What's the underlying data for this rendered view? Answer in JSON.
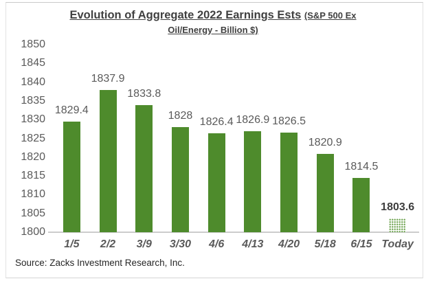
{
  "title": {
    "main": "Evolution of Aggregate 2022 Earnings Ests",
    "paren": "(S&P 500 Ex",
    "line2": "Oil/Energy - Billion $)"
  },
  "source_note": "Source: Zacks Investment Research, Inc.",
  "chart_data": {
    "type": "bar",
    "title": "Evolution of Aggregate 2022 Earnings Ests (S&P 500 Ex Oil/Energy - Billion $)",
    "categories": [
      "1/5",
      "2/2",
      "3/9",
      "3/30",
      "4/6",
      "4/13",
      "4/20",
      "5/18",
      "6/15",
      "Today"
    ],
    "values": [
      1829.4,
      1837.9,
      1833.8,
      1828,
      1826.4,
      1826.9,
      1826.5,
      1820.9,
      1814.5,
      1803.6
    ],
    "data_labels": [
      "1829.4",
      "1837.9",
      "1833.8",
      "1828",
      "1826.4",
      "1826.9",
      "1826.5",
      "1820.9",
      "1814.5",
      "1803.6"
    ],
    "xlabel": "",
    "ylabel": "",
    "ylim": [
      1800,
      1850
    ],
    "yticks": [
      1850,
      1845,
      1840,
      1835,
      1830,
      1825,
      1820,
      1815,
      1810,
      1805,
      1800
    ],
    "grid": false,
    "legend": false,
    "bar_color": "#4e8b2c",
    "last_bar_style": "dotted-pattern",
    "last_bar_dot_color": "#79aa5d",
    "data_label_color": "#595959",
    "final_label_color": "#3d3d3d",
    "axis_line_color": "#cccccc"
  }
}
